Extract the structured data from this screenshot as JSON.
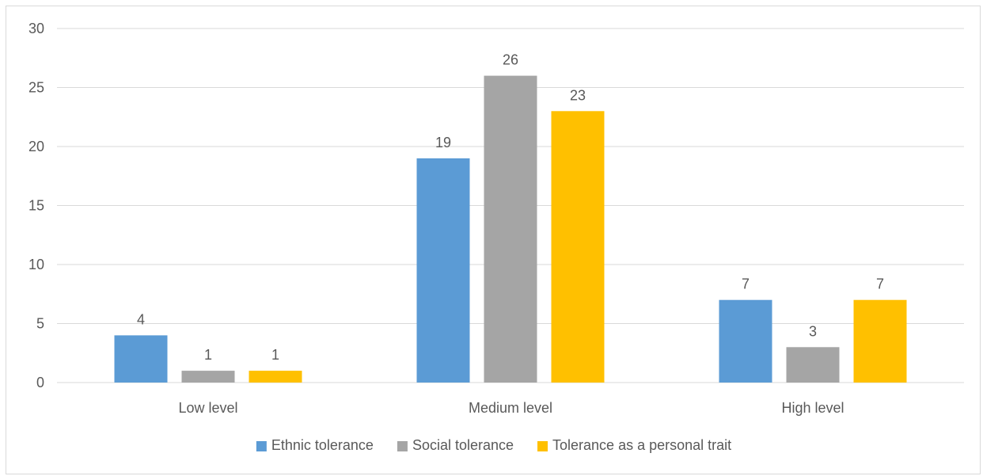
{
  "chart_data": {
    "type": "bar",
    "title": "",
    "xlabel": "",
    "ylabel": "",
    "categories": [
      "Low level",
      "Medium level",
      "High level"
    ],
    "series": [
      {
        "name": "Ethnic tolerance",
        "values": [
          4,
          19,
          7
        ],
        "color": "#5b9bd5"
      },
      {
        "name": "Social tolerance",
        "values": [
          1,
          26,
          3
        ],
        "color": "#a5a5a5"
      },
      {
        "name": "Tolerance as a personal trait",
        "values": [
          1,
          23,
          7
        ],
        "color": "#ffc000"
      }
    ],
    "ylim": [
      0,
      30
    ],
    "yticks": [
      0,
      5,
      10,
      15,
      20,
      25,
      30
    ],
    "grid": true,
    "legend_position": "bottom",
    "data_labels": true,
    "gridline_color": "#d9d9d9",
    "text_color": "#595959"
  }
}
